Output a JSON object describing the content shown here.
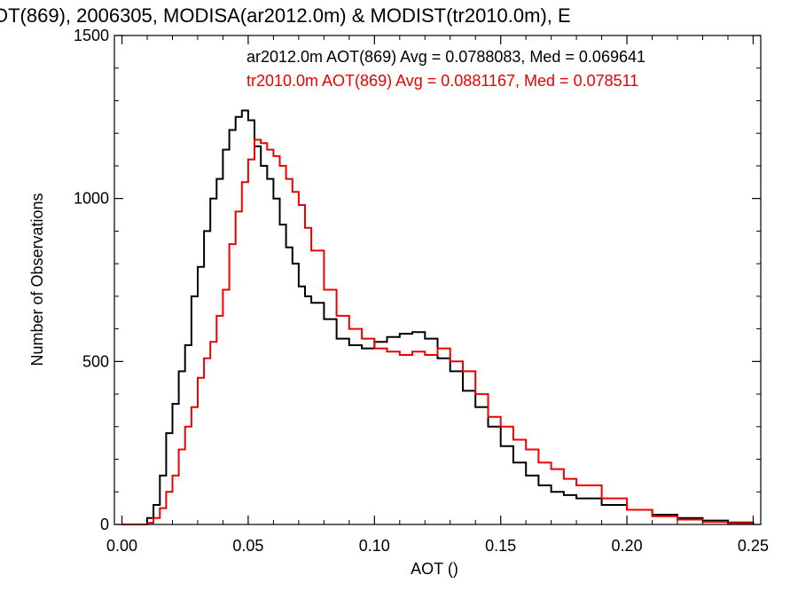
{
  "chart_data": {
    "type": "line",
    "title": "OT(869), 2006305, MODISA(ar2012.0m) & MODIST(tr2010.0m), E",
    "xlabel": "AOT ()",
    "ylabel": "Number of Observations",
    "xlim": [
      -0.003,
      0.253
    ],
    "ylim": [
      0,
      1500
    ],
    "x_ticks": [
      "0.00",
      "0.05",
      "0.10",
      "0.15",
      "0.20",
      "0.25"
    ],
    "y_ticks": [
      "0",
      "500",
      "1000",
      "1500"
    ],
    "annotations": [
      {
        "text": "ar2012.0m AOT(869) Avg = 0.0788083, Med = 0.069641",
        "color": "#000000"
      },
      {
        "text": "tr2010.0m AOT(869) Avg = 0.0881167, Med = 0.078511",
        "color": "#ee0000"
      }
    ],
    "series": [
      {
        "color": "#000000",
        "x": [
          0.0,
          0.005,
          0.01,
          0.0125,
          0.015,
          0.0175,
          0.02,
          0.0225,
          0.025,
          0.0275,
          0.03,
          0.0325,
          0.035,
          0.0375,
          0.04,
          0.0425,
          0.045,
          0.0475,
          0.05,
          0.0525,
          0.055,
          0.0575,
          0.06,
          0.0625,
          0.065,
          0.0675,
          0.07,
          0.0725,
          0.075,
          0.08,
          0.085,
          0.09,
          0.095,
          0.1,
          0.105,
          0.11,
          0.115,
          0.12,
          0.125,
          0.13,
          0.135,
          0.14,
          0.145,
          0.15,
          0.155,
          0.16,
          0.165,
          0.17,
          0.175,
          0.18,
          0.19,
          0.2,
          0.21,
          0.22,
          0.23,
          0.24,
          0.25
        ],
        "y": [
          0,
          0,
          20,
          60,
          150,
          280,
          370,
          470,
          550,
          700,
          790,
          900,
          1000,
          1060,
          1150,
          1210,
          1250,
          1270,
          1240,
          1160,
          1100,
          1060,
          1000,
          920,
          850,
          800,
          730,
          700,
          680,
          630,
          570,
          550,
          540,
          560,
          575,
          585,
          590,
          570,
          510,
          470,
          410,
          360,
          300,
          240,
          190,
          150,
          120,
          100,
          90,
          80,
          60,
          45,
          30,
          20,
          12,
          6,
          3
        ]
      },
      {
        "color": "#ee0000",
        "x": [
          0.0,
          0.005,
          0.01,
          0.0125,
          0.015,
          0.0175,
          0.02,
          0.0225,
          0.025,
          0.0275,
          0.03,
          0.0325,
          0.035,
          0.0375,
          0.04,
          0.0425,
          0.045,
          0.0475,
          0.05,
          0.0525,
          0.055,
          0.0575,
          0.06,
          0.0625,
          0.065,
          0.0675,
          0.07,
          0.0725,
          0.075,
          0.08,
          0.085,
          0.09,
          0.095,
          0.1,
          0.105,
          0.11,
          0.115,
          0.12,
          0.125,
          0.13,
          0.135,
          0.14,
          0.145,
          0.15,
          0.155,
          0.16,
          0.165,
          0.17,
          0.175,
          0.18,
          0.19,
          0.2,
          0.21,
          0.22,
          0.23,
          0.24,
          0.25
        ],
        "y": [
          0,
          0,
          5,
          20,
          50,
          100,
          150,
          230,
          300,
          360,
          450,
          510,
          560,
          640,
          720,
          860,
          960,
          1050,
          1120,
          1180,
          1170,
          1150,
          1130,
          1100,
          1060,
          1020,
          980,
          910,
          840,
          720,
          640,
          600,
          570,
          540,
          530,
          520,
          530,
          520,
          540,
          500,
          470,
          400,
          330,
          300,
          260,
          230,
          190,
          170,
          140,
          120,
          80,
          45,
          25,
          15,
          8,
          4,
          2
        ]
      }
    ]
  }
}
